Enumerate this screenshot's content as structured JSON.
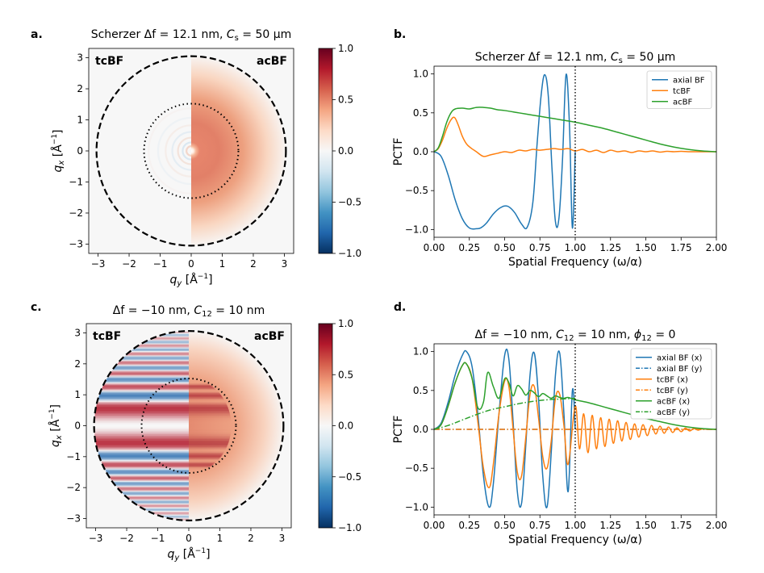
{
  "colors": {
    "axial": "#1f77b4",
    "tc": "#ff7f0e",
    "ac": "#2ca02c",
    "vline": "#000000"
  },
  "chart_data": [
    {
      "type": "heatmap",
      "panel": "a.",
      "title": "Scherzer Δf = 12.1 nm,  C_s = 50 μm",
      "title_parts": {
        "pre": "Scherzer Δf = 12.1 nm, ",
        "var": "C",
        "sub": "s",
        "post": " = 50 μm"
      },
      "xlabel": "q_y [Å⁻¹]",
      "ylabel": "q_x [Å⁻¹]",
      "xlim": [
        -3.3,
        3.3
      ],
      "ylim": [
        -3.3,
        3.3
      ],
      "ticks": [
        "−3",
        "−2",
        "−1",
        "0",
        "1",
        "2",
        "3"
      ],
      "tick_values": [
        -3,
        -2,
        -1,
        0,
        1,
        2,
        3
      ],
      "left_label": "tcBF",
      "right_label": "acBF",
      "outer_circle_radius": 3.05,
      "inner_circle_radius": 1.52,
      "colorbar": {
        "range": [
          -1.0,
          1.0
        ],
        "ticks": [
          "−1.0",
          "−0.5",
          "0.0",
          "0.5",
          "1.0"
        ],
        "tick_values": [
          -1,
          -0.5,
          0,
          0.5,
          1
        ]
      },
      "pattern": "scherzer"
    },
    {
      "type": "line",
      "panel": "b.",
      "title": "Scherzer Δf = 12.1 nm,  C_s = 50 μm",
      "title_parts": {
        "pre": "Scherzer Δf = 12.1 nm, ",
        "var": "C",
        "sub": "s",
        "post": " = 50 μm"
      },
      "xlabel": "Spatial Frequency (ω/α)",
      "ylabel": "PCTF",
      "xlim": [
        0,
        2.0
      ],
      "ylim": [
        -1.1,
        1.1
      ],
      "xticks": [
        "0.00",
        "0.25",
        "0.50",
        "0.75",
        "1.00",
        "1.25",
        "1.50",
        "1.75",
        "2.00"
      ],
      "xtick_values": [
        0,
        0.25,
        0.5,
        0.75,
        1.0,
        1.25,
        1.5,
        1.75,
        2.0
      ],
      "yticks": [
        "−1.0",
        "−0.5",
        "0.0",
        "0.5",
        "1.0"
      ],
      "ytick_values": [
        -1,
        -0.5,
        0,
        0.5,
        1
      ],
      "vline_x": 1.0,
      "legend": "top-right",
      "series": [
        {
          "name": "axial BF",
          "style": "solid",
          "color_key": "axial",
          "x": [
            0,
            0.05,
            0.1,
            0.15,
            0.2,
            0.25,
            0.3,
            0.33,
            0.37,
            0.42,
            0.47,
            0.52,
            0.57,
            0.62,
            0.66,
            0.7,
            0.73,
            0.76,
            0.785,
            0.81,
            0.835,
            0.86,
            0.885,
            0.91,
            0.935,
            0.96,
            0.98,
            1.0
          ],
          "y": [
            0,
            -0.06,
            -0.3,
            -0.62,
            -0.86,
            -0.98,
            -0.99,
            -0.98,
            -0.92,
            -0.8,
            -0.72,
            -0.7,
            -0.78,
            -0.93,
            -0.97,
            -0.65,
            0.1,
            0.75,
            0.99,
            0.7,
            -0.2,
            -0.9,
            -0.85,
            -0.1,
            0.99,
            0.3,
            -0.98,
            0.0
          ]
        },
        {
          "name": "tcBF",
          "style": "solid",
          "color_key": "tc",
          "x": [
            0,
            0.03,
            0.06,
            0.09,
            0.12,
            0.145,
            0.17,
            0.2,
            0.23,
            0.26,
            0.3,
            0.35,
            0.4,
            0.45,
            0.5,
            0.55,
            0.6,
            0.65,
            0.7,
            0.75,
            0.8,
            0.85,
            0.9,
            0.95,
            1.0,
            1.05,
            1.1,
            1.15,
            1.2,
            1.25,
            1.3,
            1.35,
            1.4,
            1.45,
            1.5,
            1.55,
            1.6,
            1.65,
            1.7,
            1.75,
            1.8,
            1.85,
            1.9,
            1.95,
            2.0
          ],
          "y": [
            0,
            0.04,
            0.15,
            0.3,
            0.41,
            0.44,
            0.35,
            0.2,
            0.1,
            0.05,
            0.0,
            -0.06,
            -0.04,
            -0.02,
            0.0,
            -0.01,
            0.02,
            0.01,
            0.03,
            0.02,
            0.03,
            0.04,
            0.03,
            0.04,
            0.01,
            0.03,
            0.0,
            0.02,
            -0.01,
            0.02,
            0.0,
            0.01,
            -0.01,
            0.01,
            0.0,
            0.01,
            -0.005,
            0.005,
            0.0,
            0.005,
            0.0,
            0.0,
            0.0,
            0.0,
            0.0
          ]
        },
        {
          "name": "acBF",
          "style": "solid",
          "color_key": "ac",
          "x": [
            0,
            0.03,
            0.06,
            0.09,
            0.12,
            0.15,
            0.2,
            0.25,
            0.3,
            0.35,
            0.4,
            0.45,
            0.5,
            0.6,
            0.7,
            0.8,
            0.9,
            1.0,
            1.1,
            1.2,
            1.3,
            1.4,
            1.5,
            1.6,
            1.7,
            1.8,
            1.9,
            2.0
          ],
          "y": [
            0,
            0.05,
            0.2,
            0.38,
            0.5,
            0.55,
            0.56,
            0.55,
            0.57,
            0.57,
            0.56,
            0.54,
            0.53,
            0.5,
            0.47,
            0.44,
            0.41,
            0.38,
            0.34,
            0.3,
            0.25,
            0.2,
            0.15,
            0.1,
            0.06,
            0.03,
            0.01,
            0.0
          ]
        }
      ]
    },
    {
      "type": "heatmap",
      "panel": "c.",
      "title": "Δf = −10 nm,  C_12 = 10 nm",
      "title_parts": {
        "pre": "Δf = −10 nm, ",
        "var": "C",
        "sub": "12",
        "post": " = 10 nm"
      },
      "xlabel": "q_y [Å⁻¹]",
      "ylabel": "q_x [Å⁻¹]",
      "xlim": [
        -3.3,
        3.3
      ],
      "ylim": [
        -3.3,
        3.3
      ],
      "ticks": [
        "−3",
        "−2",
        "−1",
        "0",
        "1",
        "2",
        "3"
      ],
      "tick_values": [
        -3,
        -2,
        -1,
        0,
        1,
        2,
        3
      ],
      "left_label": "tcBF",
      "right_label": "acBF",
      "outer_circle_radius": 3.05,
      "inner_circle_radius": 1.52,
      "colorbar": {
        "range": [
          -1.0,
          1.0
        ],
        "ticks": [
          "−1.0",
          "−0.5",
          "0.0",
          "0.5",
          "1.0"
        ],
        "tick_values": [
          -1,
          -0.5,
          0,
          0.5,
          1
        ]
      },
      "pattern": "astig"
    },
    {
      "type": "line",
      "panel": "d.",
      "title": "Δf = −10 nm,  C_12 = 10 nm,  ϕ_12 = 0",
      "title_parts": {
        "pre": "Δf = −10 nm, ",
        "var": "C",
        "sub": "12",
        "post": " = 10 nm, ",
        "var2": "ϕ",
        "sub2": "12",
        "post2": " = 0"
      },
      "xlabel": "Spatial Frequency (ω/α)",
      "ylabel": "PCTF",
      "xlim": [
        0,
        2.0
      ],
      "ylim": [
        -1.1,
        1.1
      ],
      "xticks": [
        "0.00",
        "0.25",
        "0.50",
        "0.75",
        "1.00",
        "1.25",
        "1.50",
        "1.75",
        "2.00"
      ],
      "xtick_values": [
        0,
        0.25,
        0.5,
        0.75,
        1.0,
        1.25,
        1.5,
        1.75,
        2.0
      ],
      "yticks": [
        "−1.0",
        "−0.5",
        "0.0",
        "0.5",
        "1.0"
      ],
      "ytick_values": [
        -1,
        -0.5,
        0,
        0.5,
        1
      ],
      "vline_x": 1.0,
      "legend": "top-right",
      "series": [
        {
          "name": "axial BF (x)",
          "style": "solid",
          "color_key": "axial",
          "x": [
            0,
            0.05,
            0.1,
            0.15,
            0.2,
            0.23,
            0.27,
            0.31,
            0.35,
            0.39,
            0.42,
            0.46,
            0.5,
            0.53,
            0.56,
            0.59,
            0.62,
            0.65,
            0.68,
            0.71,
            0.74,
            0.77,
            0.8,
            0.83,
            0.86,
            0.89,
            0.92,
            0.95,
            0.98,
            1.0
          ],
          "y": [
            0,
            0.08,
            0.35,
            0.7,
            0.95,
            1.0,
            0.8,
            0.2,
            -0.6,
            -1.0,
            -0.7,
            0.2,
            0.95,
            0.9,
            0.1,
            -0.8,
            -0.95,
            -0.2,
            0.7,
            0.98,
            0.4,
            -0.6,
            -1.0,
            -0.3,
            0.7,
            0.98,
            0.2,
            -0.8,
            0.5,
            0.0
          ]
        },
        {
          "name": "axial BF (y)",
          "style": "dashdot",
          "color_key": "axial",
          "x": [
            0,
            2.0
          ],
          "y": [
            0,
            0
          ]
        },
        {
          "name": "tcBF (x)",
          "style": "solid",
          "color_key": "tc",
          "x": [
            0,
            0.05,
            0.1,
            0.15,
            0.2,
            0.23,
            0.27,
            0.31,
            0.35,
            0.39,
            0.42,
            0.46,
            0.5,
            0.53,
            0.56,
            0.59,
            0.62,
            0.65,
            0.68,
            0.71,
            0.74,
            0.77,
            0.8,
            0.83,
            0.86,
            0.89,
            0.92,
            0.95,
            1.0,
            1.03,
            1.06,
            1.09,
            1.12,
            1.15,
            1.18,
            1.21,
            1.24,
            1.27,
            1.3,
            1.33,
            1.36,
            1.39,
            1.42,
            1.45,
            1.48,
            1.51,
            1.54,
            1.57,
            1.6,
            1.63,
            1.66,
            1.69,
            1.72,
            1.75,
            1.78,
            1.81,
            1.84,
            1.87,
            1.9,
            1.95,
            2.0
          ],
          "y": [
            0,
            0.06,
            0.3,
            0.6,
            0.82,
            0.84,
            0.65,
            0.1,
            -0.5,
            -0.75,
            -0.45,
            0.2,
            0.62,
            0.55,
            0.0,
            -0.55,
            -0.6,
            -0.1,
            0.45,
            0.55,
            0.15,
            -0.35,
            -0.5,
            -0.15,
            0.4,
            0.45,
            0.05,
            -0.45,
            0.3,
            -0.25,
            0.2,
            -0.3,
            0.18,
            -0.25,
            0.15,
            -0.22,
            0.13,
            -0.18,
            0.11,
            -0.15,
            0.09,
            -0.13,
            0.07,
            -0.1,
            0.06,
            -0.08,
            0.05,
            -0.06,
            0.04,
            -0.05,
            0.03,
            -0.04,
            0.02,
            -0.03,
            0.015,
            -0.02,
            0.01,
            -0.01,
            0.005,
            0.0,
            0.0
          ]
        },
        {
          "name": "tcBF (y)",
          "style": "dashdot",
          "color_key": "tc",
          "x": [
            0,
            2.0
          ],
          "y": [
            0,
            0
          ]
        },
        {
          "name": "acBF (x)",
          "style": "solid",
          "color_key": "ac",
          "x": [
            0,
            0.05,
            0.1,
            0.15,
            0.2,
            0.23,
            0.27,
            0.31,
            0.35,
            0.38,
            0.42,
            0.46,
            0.5,
            0.53,
            0.56,
            0.59,
            0.62,
            0.65,
            0.68,
            0.71,
            0.74,
            0.77,
            0.8,
            0.83,
            0.86,
            0.89,
            0.92,
            0.95,
            1.0,
            1.1,
            1.2,
            1.3,
            1.4,
            1.5,
            1.6,
            1.7,
            1.8,
            1.9,
            2.0
          ],
          "y": [
            0,
            0.06,
            0.3,
            0.6,
            0.82,
            0.84,
            0.65,
            0.28,
            0.35,
            0.73,
            0.55,
            0.4,
            0.65,
            0.6,
            0.43,
            0.56,
            0.52,
            0.44,
            0.5,
            0.47,
            0.42,
            0.46,
            0.43,
            0.4,
            0.43,
            0.41,
            0.4,
            0.41,
            0.38,
            0.34,
            0.29,
            0.24,
            0.19,
            0.14,
            0.1,
            0.06,
            0.03,
            0.01,
            0.0
          ]
        },
        {
          "name": "acBF (y)",
          "style": "dashdot",
          "color_key": "ac",
          "x": [
            0,
            0.1,
            0.2,
            0.3,
            0.4,
            0.5,
            0.6,
            0.7,
            0.8,
            0.9,
            1.0
          ],
          "y": [
            0,
            0.05,
            0.12,
            0.19,
            0.25,
            0.29,
            0.33,
            0.36,
            0.38,
            0.39,
            0.4
          ]
        }
      ]
    }
  ]
}
